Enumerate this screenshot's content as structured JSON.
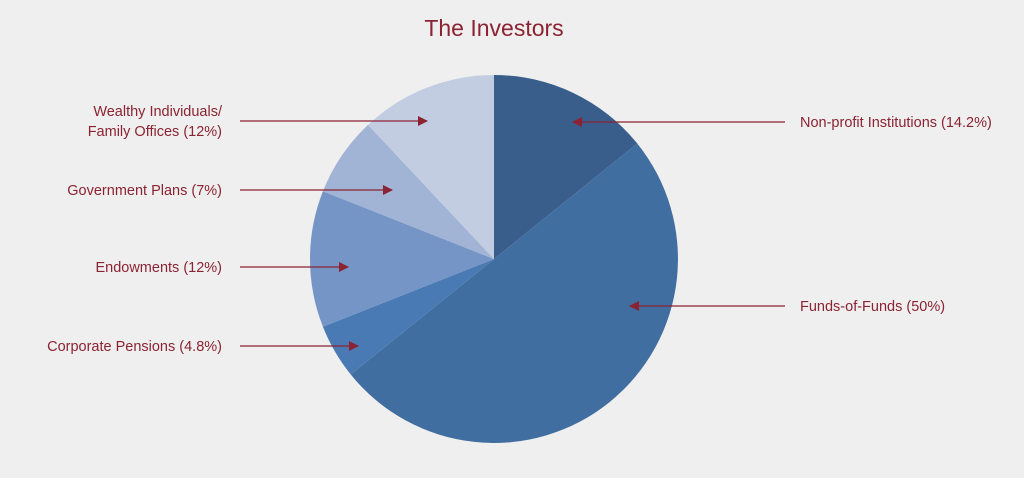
{
  "chart_data": {
    "type": "pie",
    "title": "The Investors",
    "start": "top",
    "direction": "clockwise",
    "slices": [
      {
        "label": "Non-profit Institutions (14.2%)",
        "value": 14.2,
        "color": "#3a5e8b",
        "side": "right"
      },
      {
        "label": "Funds-of-Funds (50%)",
        "value": 50,
        "color": "#416ea1",
        "side": "right"
      },
      {
        "label": "Corporate Pensions (4.8%)",
        "value": 4.8,
        "color": "#4a7ab4",
        "side": "left"
      },
      {
        "label": "Endowments (12%)",
        "value": 12,
        "color": "#7495c5",
        "side": "left"
      },
      {
        "label": "Government Plans (7%)",
        "value": 7,
        "color": "#a1b4d6",
        "side": "left"
      },
      {
        "label": "Wealthy Individuals/\nFamily Offices (12%)",
        "value": 12,
        "color": "#c3cde2",
        "side": "left"
      }
    ],
    "label_color": "#8b2332",
    "background": "#efefef"
  }
}
